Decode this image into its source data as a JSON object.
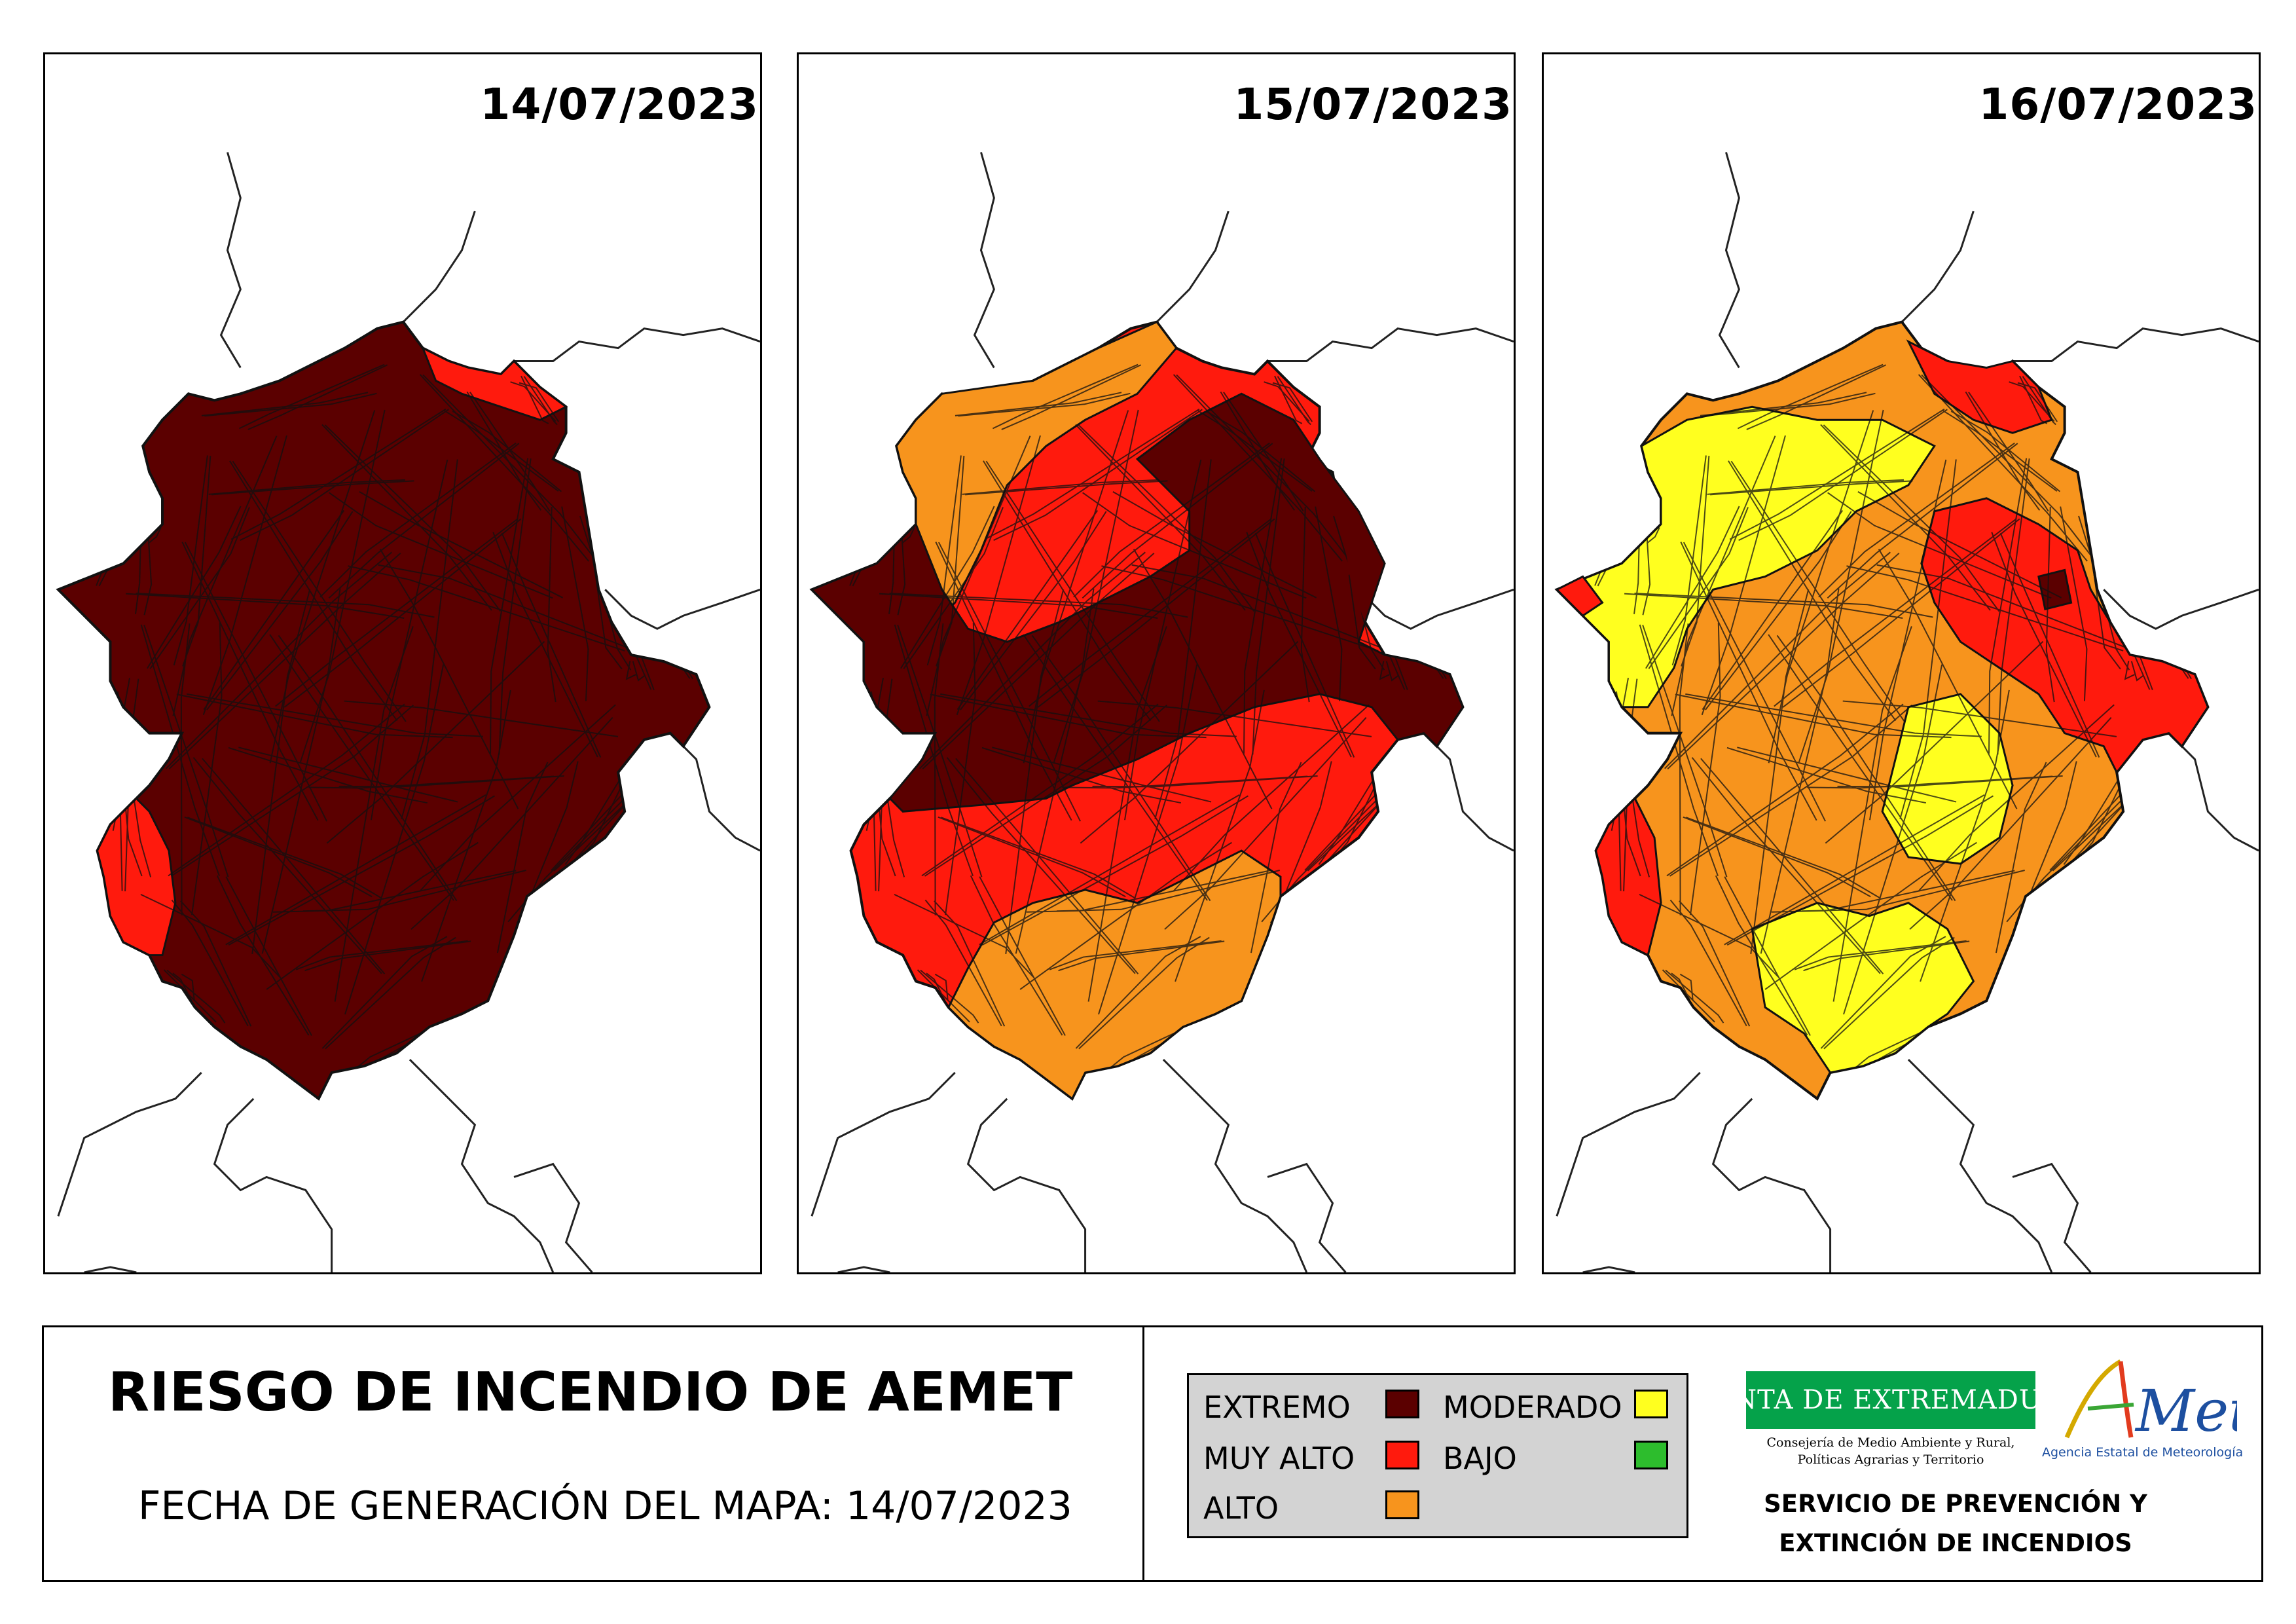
{
  "maps": [
    {
      "date": "14/07/2023"
    },
    {
      "date": "15/07/2023"
    },
    {
      "date": "16/07/2023"
    }
  ],
  "footer": {
    "title": "RIESGO DE INCENDIO DE AEMET",
    "generation": "FECHA DE GENERACIÓN DEL MAPA: 14/07/2023"
  },
  "legend": {
    "items": [
      {
        "label": "EXTREMO",
        "color": "#5b0000"
      },
      {
        "label": "MUY ALTO",
        "color": "#ff1a0d"
      },
      {
        "label": "ALTO",
        "color": "#f7941d"
      },
      {
        "label": "MODERADO",
        "color": "#ffff1f"
      },
      {
        "label": "BAJO",
        "color": "#2dbd2d"
      }
    ]
  },
  "logos": {
    "junta": "JUNTA DE EXTREMADURA",
    "consejeria_line1": "Consejería de Medio Ambiente y Rural,",
    "consejeria_line2": "Políticas Agrarias y Territorio",
    "aemet": "AEMet",
    "aemet_agency": "Agencia Estatal de Meteorología"
  },
  "service": {
    "line1": "SERVICIO DE PREVENCIÓN Y",
    "line2": "EXTINCIÓN DE INCENDIOS"
  }
}
